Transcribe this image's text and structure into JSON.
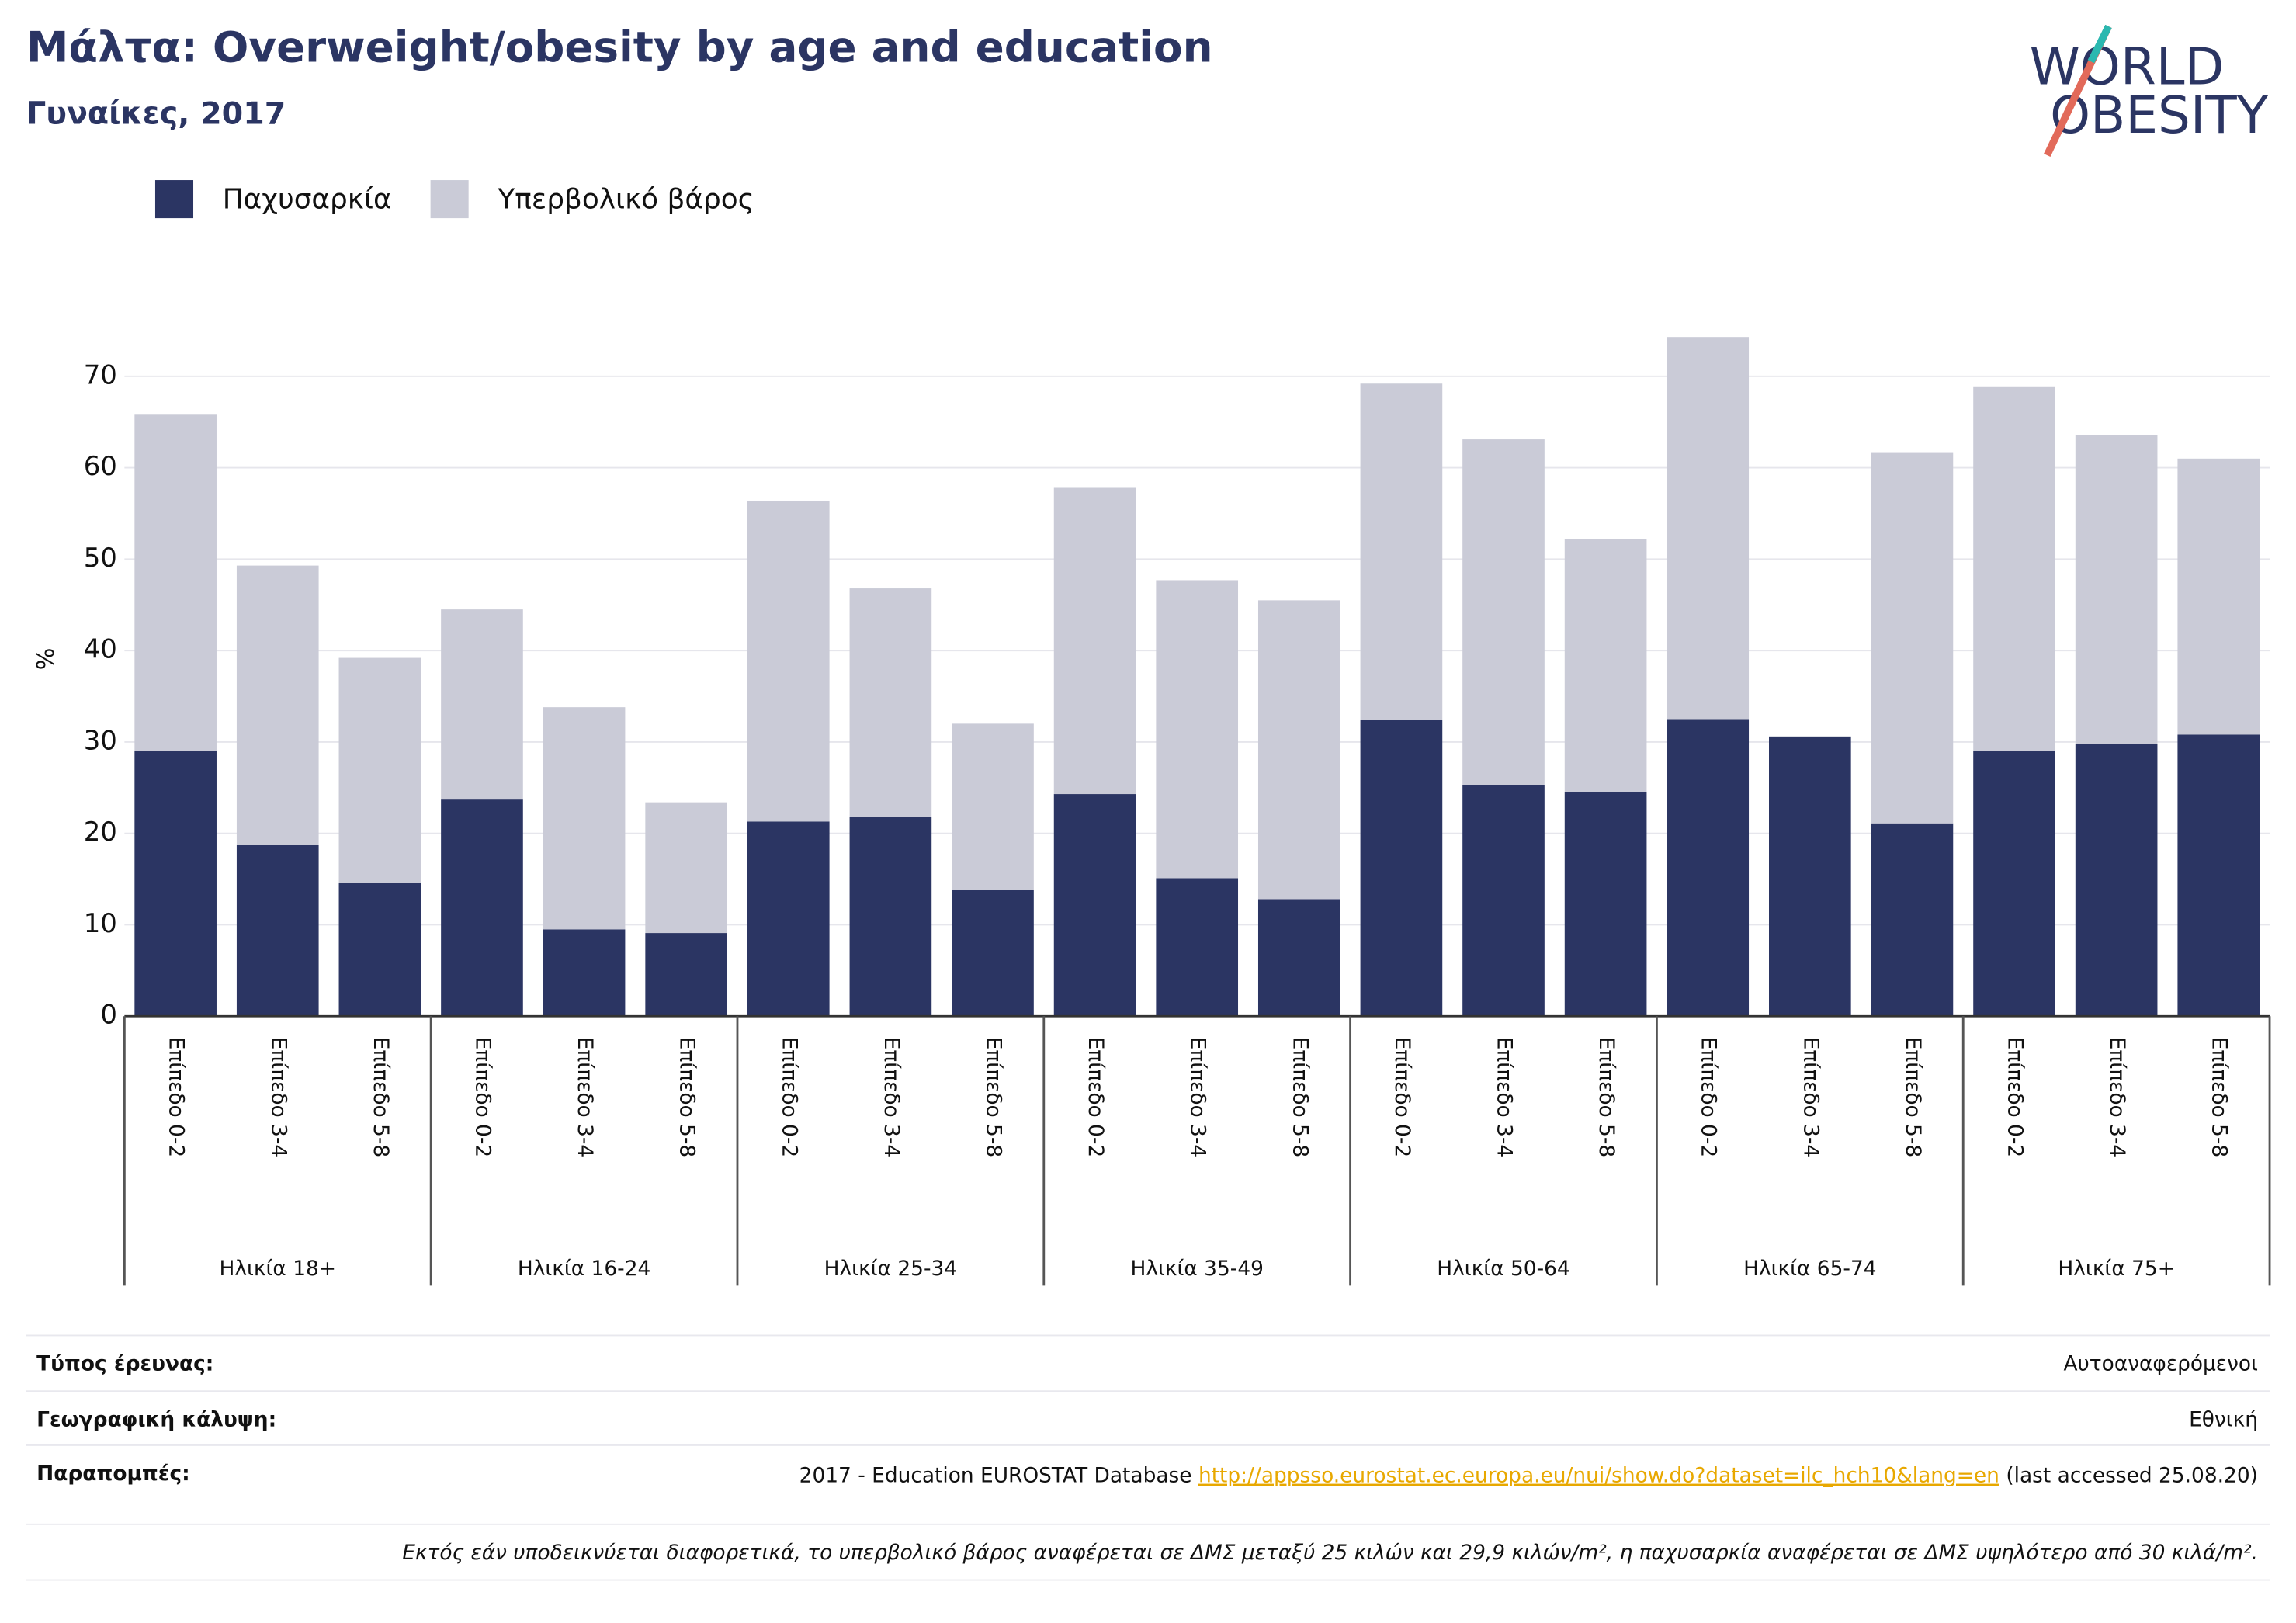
{
  "chart_data": {
    "type": "stacked_bar",
    "title": "Μάλτα: Overweight/obesity by age and education",
    "subtitle": "Γυναίκες, 2017",
    "y_label": "%",
    "categories": [
      "Επίπεδο 0-2",
      "Επίπεδο 3-4",
      "Επίπεδο 5-8",
      "Επίπεδο 0-2",
      "Επίπεδο 3-4",
      "Επίπεδο 5-8",
      "Επίπεδο 0-2",
      "Επίπεδο 3-4",
      "Επίπεδο 5-8",
      "Επίπεδο 0-2",
      "Επίπεδο 3-4",
      "Επίπεδο 5-8",
      "Επίπεδο 0-2",
      "Επίπεδο 3-4",
      "Επίπεδο 5-8",
      "Επίπεδο 0-2",
      "Επίπεδο 3-4",
      "Επίπεδο 5-8",
      "Επίπεδο 0-2",
      "Επίπεδο 3-4",
      "Επίπεδο 5-8"
    ],
    "groups": [
      "Ηλικία 18+",
      "Ηλικία 16-24",
      "Ηλικία 25-34",
      "Ηλικία 35-49",
      "Ηλικία 50-64",
      "Ηλικία 65-74",
      "Ηλικία 75+"
    ],
    "series": [
      {
        "name": "Παχυσαρκία",
        "color": "#2b3563",
        "values": [
          29.0,
          18.7,
          14.6,
          23.7,
          9.5,
          9.1,
          21.3,
          21.8,
          13.8,
          24.3,
          15.1,
          12.8,
          32.4,
          25.3,
          24.5,
          32.5,
          30.6,
          21.1,
          29.0,
          29.8,
          30.8
        ]
      },
      {
        "name": "Υπερβολικό βάρος",
        "color": "#cacbd7",
        "values": [
          36.8,
          30.6,
          24.6,
          20.8,
          24.3,
          14.3,
          35.1,
          25.0,
          18.2,
          33.5,
          32.6,
          32.7,
          36.8,
          37.8,
          27.7,
          41.8,
          null,
          40.6,
          39.9,
          33.8,
          30.2
        ]
      }
    ],
    "ylim": [
      0,
      75
    ],
    "yticks": [
      0,
      10,
      20,
      30,
      40,
      50,
      60,
      70
    ],
    "grid": true
  },
  "logo": {
    "line1": "WORLD",
    "line2": "OBESITY"
  },
  "footer": {
    "rows": [
      {
        "label": "Τύπος έρευνας:",
        "value": "Αυτοαναφερόμενοι"
      },
      {
        "label": "Γεωγραφική κάλυψη:",
        "value": "Εθνική"
      }
    ],
    "reference": {
      "label": "Παραπομπές:",
      "prefix": "2017 - Education EUROSTAT Database",
      "link": "http://appsso.eurostat.ec.europa.eu/nui/show.do?dataset=ilc_hch10&lang=en",
      "suffix": "(last accessed 25.08.20)"
    },
    "note": "Εκτός εάν υποδεικνύεται διαφορετικά, το υπερβολικό βάρος αναφέρεται σε ΔΜΣ μεταξύ 25 κιλών και 29,9 κιλών/m², η παχυσαρκία αναφέρεται σε ΔΜΣ υψηλότερο από 30 κιλά/m²."
  }
}
